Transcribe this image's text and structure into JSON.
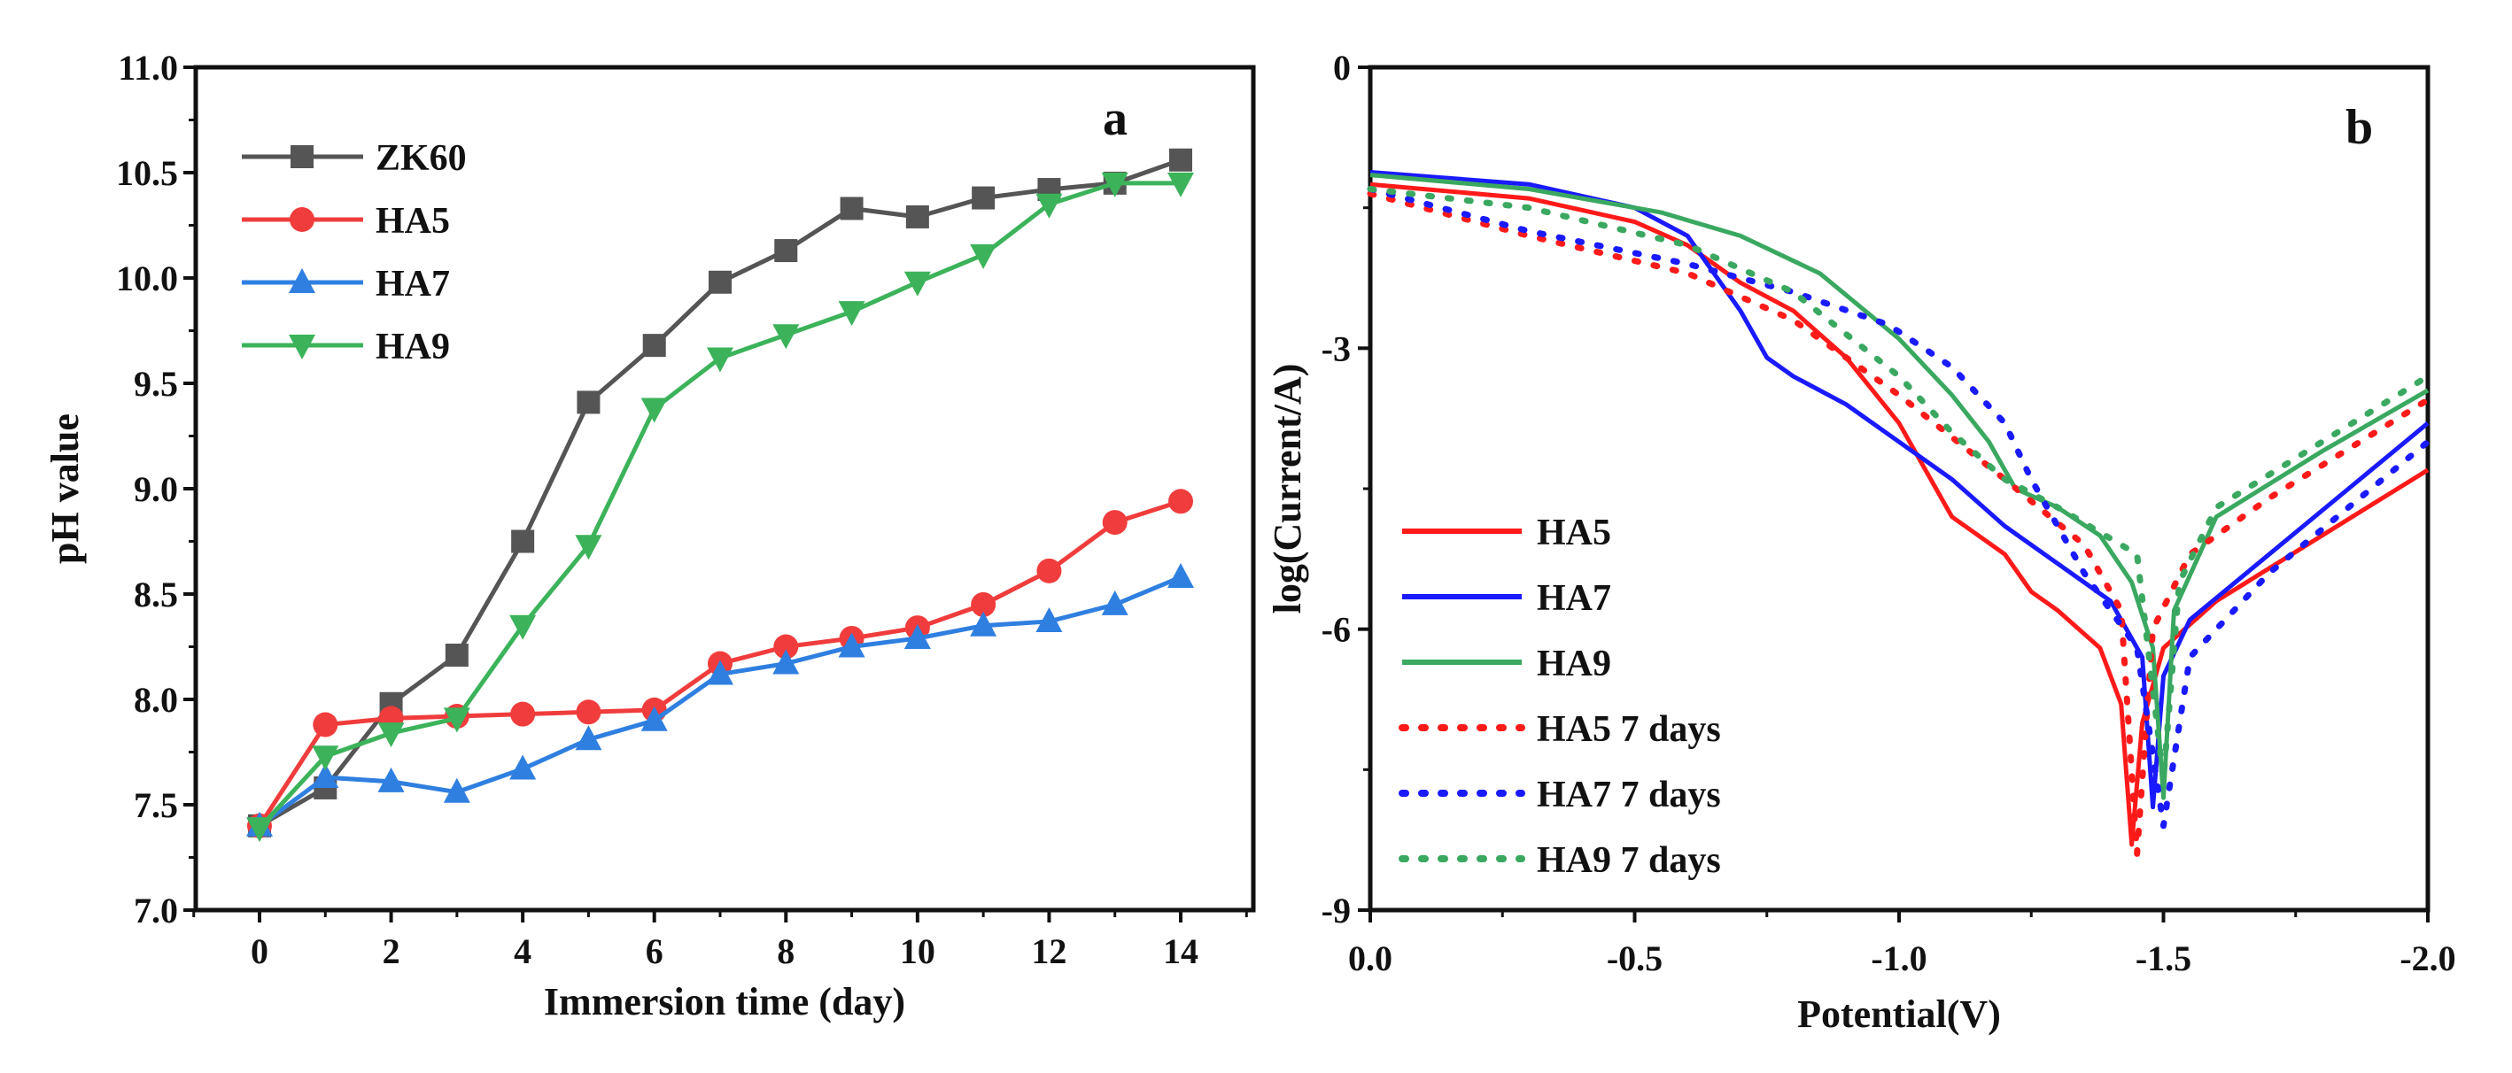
{
  "chart_data": [
    {
      "type": "line",
      "panel_label": "a",
      "xlabel": "Immersion time (day)",
      "ylabel": "pH value",
      "xlim": [
        -1,
        16
      ],
      "ylim": [
        7.0,
        11.0
      ],
      "xticks": [
        "0",
        "2",
        "4",
        "6",
        "8",
        "10",
        "12",
        "14"
      ],
      "yticks": [
        "7.0",
        "7.5",
        "8.0",
        "8.5",
        "9.0",
        "9.5",
        "10.0",
        "10.5",
        "11.0"
      ],
      "legend_position": "top-left",
      "x": [
        0,
        1,
        2,
        3,
        4,
        5,
        6,
        7,
        8,
        9,
        10,
        11,
        12,
        13,
        14
      ],
      "series": [
        {
          "name": "ZK60",
          "color": "#555555",
          "marker": "square",
          "values": [
            7.4,
            7.58,
            7.98,
            8.21,
            8.75,
            9.41,
            9.68,
            9.98,
            10.13,
            10.33,
            10.29,
            10.38,
            10.42,
            10.45,
            10.56
          ]
        },
        {
          "name": "HA5",
          "color": "#f03c3c",
          "marker": "circle",
          "values": [
            7.4,
            7.88,
            7.91,
            7.92,
            7.93,
            7.94,
            7.95,
            8.17,
            8.25,
            8.29,
            8.34,
            8.45,
            8.61,
            8.84,
            8.94
          ]
        },
        {
          "name": "HA7",
          "color": "#2f7fe0",
          "marker": "triangle-up",
          "values": [
            7.4,
            7.63,
            7.61,
            7.56,
            7.67,
            7.81,
            7.9,
            8.12,
            8.17,
            8.25,
            8.29,
            8.35,
            8.37,
            8.45,
            8.58
          ]
        },
        {
          "name": "HA9",
          "color": "#3cb35a",
          "marker": "triangle-down",
          "values": [
            7.39,
            7.73,
            7.84,
            7.91,
            8.35,
            8.73,
            9.38,
            9.62,
            9.73,
            9.84,
            9.98,
            10.11,
            10.35,
            10.45,
            10.45
          ]
        }
      ]
    },
    {
      "type": "line",
      "panel_label": "b",
      "xlabel": "Potential(V)",
      "ylabel": "log(Current/A)",
      "xlim": [
        0,
        -2.0
      ],
      "ylim": [
        -9,
        0
      ],
      "xticks": [
        "0.0",
        "-0.5",
        "-1.0",
        "-1.5",
        "-2.0"
      ],
      "yticks": [
        "-9",
        "-6",
        "-3",
        "0"
      ],
      "legend_position": "bottom-left",
      "series": [
        {
          "name": "HA5",
          "color": "#ff1a1a",
          "style": "solid",
          "points": [
            [
              0,
              -1.25
            ],
            [
              -0.3,
              -1.4
            ],
            [
              -0.5,
              -1.65
            ],
            [
              -0.6,
              -1.9
            ],
            [
              -0.7,
              -2.3
            ],
            [
              -0.8,
              -2.6
            ],
            [
              -0.9,
              -3.1
            ],
            [
              -1.0,
              -3.8
            ],
            [
              -1.05,
              -4.3
            ],
            [
              -1.1,
              -4.8
            ],
            [
              -1.15,
              -5.0
            ],
            [
              -1.2,
              -5.2
            ],
            [
              -1.25,
              -5.6
            ],
            [
              -1.3,
              -5.8
            ],
            [
              -1.38,
              -6.2
            ],
            [
              -1.42,
              -6.8
            ],
            [
              -1.44,
              -8.3
            ],
            [
              -1.46,
              -7.0
            ],
            [
              -1.5,
              -6.2
            ],
            [
              -1.6,
              -5.7
            ],
            [
              -1.8,
              -5.0
            ],
            [
              -2.0,
              -4.3
            ]
          ]
        },
        {
          "name": "HA7",
          "color": "#1a1aff",
          "style": "solid",
          "points": [
            [
              0,
              -1.12
            ],
            [
              -0.3,
              -1.25
            ],
            [
              -0.5,
              -1.5
            ],
            [
              -0.6,
              -1.8
            ],
            [
              -0.7,
              -2.6
            ],
            [
              -0.75,
              -3.1
            ],
            [
              -0.8,
              -3.3
            ],
            [
              -0.9,
              -3.6
            ],
            [
              -1.0,
              -4.0
            ],
            [
              -1.1,
              -4.4
            ],
            [
              -1.2,
              -4.9
            ],
            [
              -1.3,
              -5.3
            ],
            [
              -1.4,
              -5.7
            ],
            [
              -1.46,
              -6.3
            ],
            [
              -1.48,
              -7.9
            ],
            [
              -1.5,
              -6.5
            ],
            [
              -1.55,
              -5.9
            ],
            [
              -1.7,
              -5.2
            ],
            [
              -2.0,
              -3.8
            ]
          ]
        },
        {
          "name": "HA9",
          "color": "#3aa860",
          "style": "solid",
          "points": [
            [
              0,
              -1.15
            ],
            [
              -0.3,
              -1.3
            ],
            [
              -0.55,
              -1.55
            ],
            [
              -0.7,
              -1.8
            ],
            [
              -0.85,
              -2.2
            ],
            [
              -1.0,
              -2.9
            ],
            [
              -1.1,
              -3.5
            ],
            [
              -1.17,
              -4.0
            ],
            [
              -1.22,
              -4.5
            ],
            [
              -1.3,
              -4.7
            ],
            [
              -1.38,
              -5.0
            ],
            [
              -1.44,
              -5.5
            ],
            [
              -1.48,
              -6.2
            ],
            [
              -1.5,
              -7.8
            ],
            [
              -1.52,
              -5.8
            ],
            [
              -1.6,
              -4.8
            ],
            [
              -1.8,
              -4.1
            ],
            [
              -2.0,
              -3.45
            ]
          ]
        },
        {
          "name": "HA5 7 days",
          "color": "#ff1a1a",
          "style": "dotted",
          "points": [
            [
              0,
              -1.35
            ],
            [
              -0.3,
              -1.8
            ],
            [
              -0.6,
              -2.2
            ],
            [
              -0.8,
              -2.7
            ],
            [
              -1.0,
              -3.5
            ],
            [
              -1.2,
              -4.4
            ],
            [
              -1.35,
              -5.1
            ],
            [
              -1.42,
              -5.8
            ],
            [
              -1.45,
              -8.4
            ],
            [
              -1.48,
              -6.0
            ],
            [
              -1.55,
              -5.2
            ],
            [
              -1.7,
              -4.6
            ],
            [
              -2.0,
              -3.55
            ]
          ]
        },
        {
          "name": "HA7 7 days",
          "color": "#1a1aff",
          "style": "dotted",
          "points": [
            [
              0,
              -1.3
            ],
            [
              -0.3,
              -1.75
            ],
            [
              -0.6,
              -2.1
            ],
            [
              -0.8,
              -2.4
            ],
            [
              -0.98,
              -2.75
            ],
            [
              -1.1,
              -3.2
            ],
            [
              -1.2,
              -3.8
            ],
            [
              -1.25,
              -4.4
            ],
            [
              -1.35,
              -5.4
            ],
            [
              -1.45,
              -6.2
            ],
            [
              -1.5,
              -8.1
            ],
            [
              -1.55,
              -6.3
            ],
            [
              -1.7,
              -5.4
            ],
            [
              -2.0,
              -4.0
            ]
          ]
        },
        {
          "name": "HA9 7 days",
          "color": "#3aa860",
          "style": "dotted",
          "points": [
            [
              0,
              -1.3
            ],
            [
              -0.3,
              -1.5
            ],
            [
              -0.6,
              -1.9
            ],
            [
              -0.8,
              -2.4
            ],
            [
              -1.0,
              -3.3
            ],
            [
              -1.1,
              -3.9
            ],
            [
              -1.2,
              -4.4
            ],
            [
              -1.3,
              -4.7
            ],
            [
              -1.45,
              -5.2
            ],
            [
              -1.5,
              -7.6
            ],
            [
              -1.53,
              -5.5
            ],
            [
              -1.6,
              -4.7
            ],
            [
              -2.0,
              -3.3
            ]
          ]
        }
      ]
    }
  ]
}
